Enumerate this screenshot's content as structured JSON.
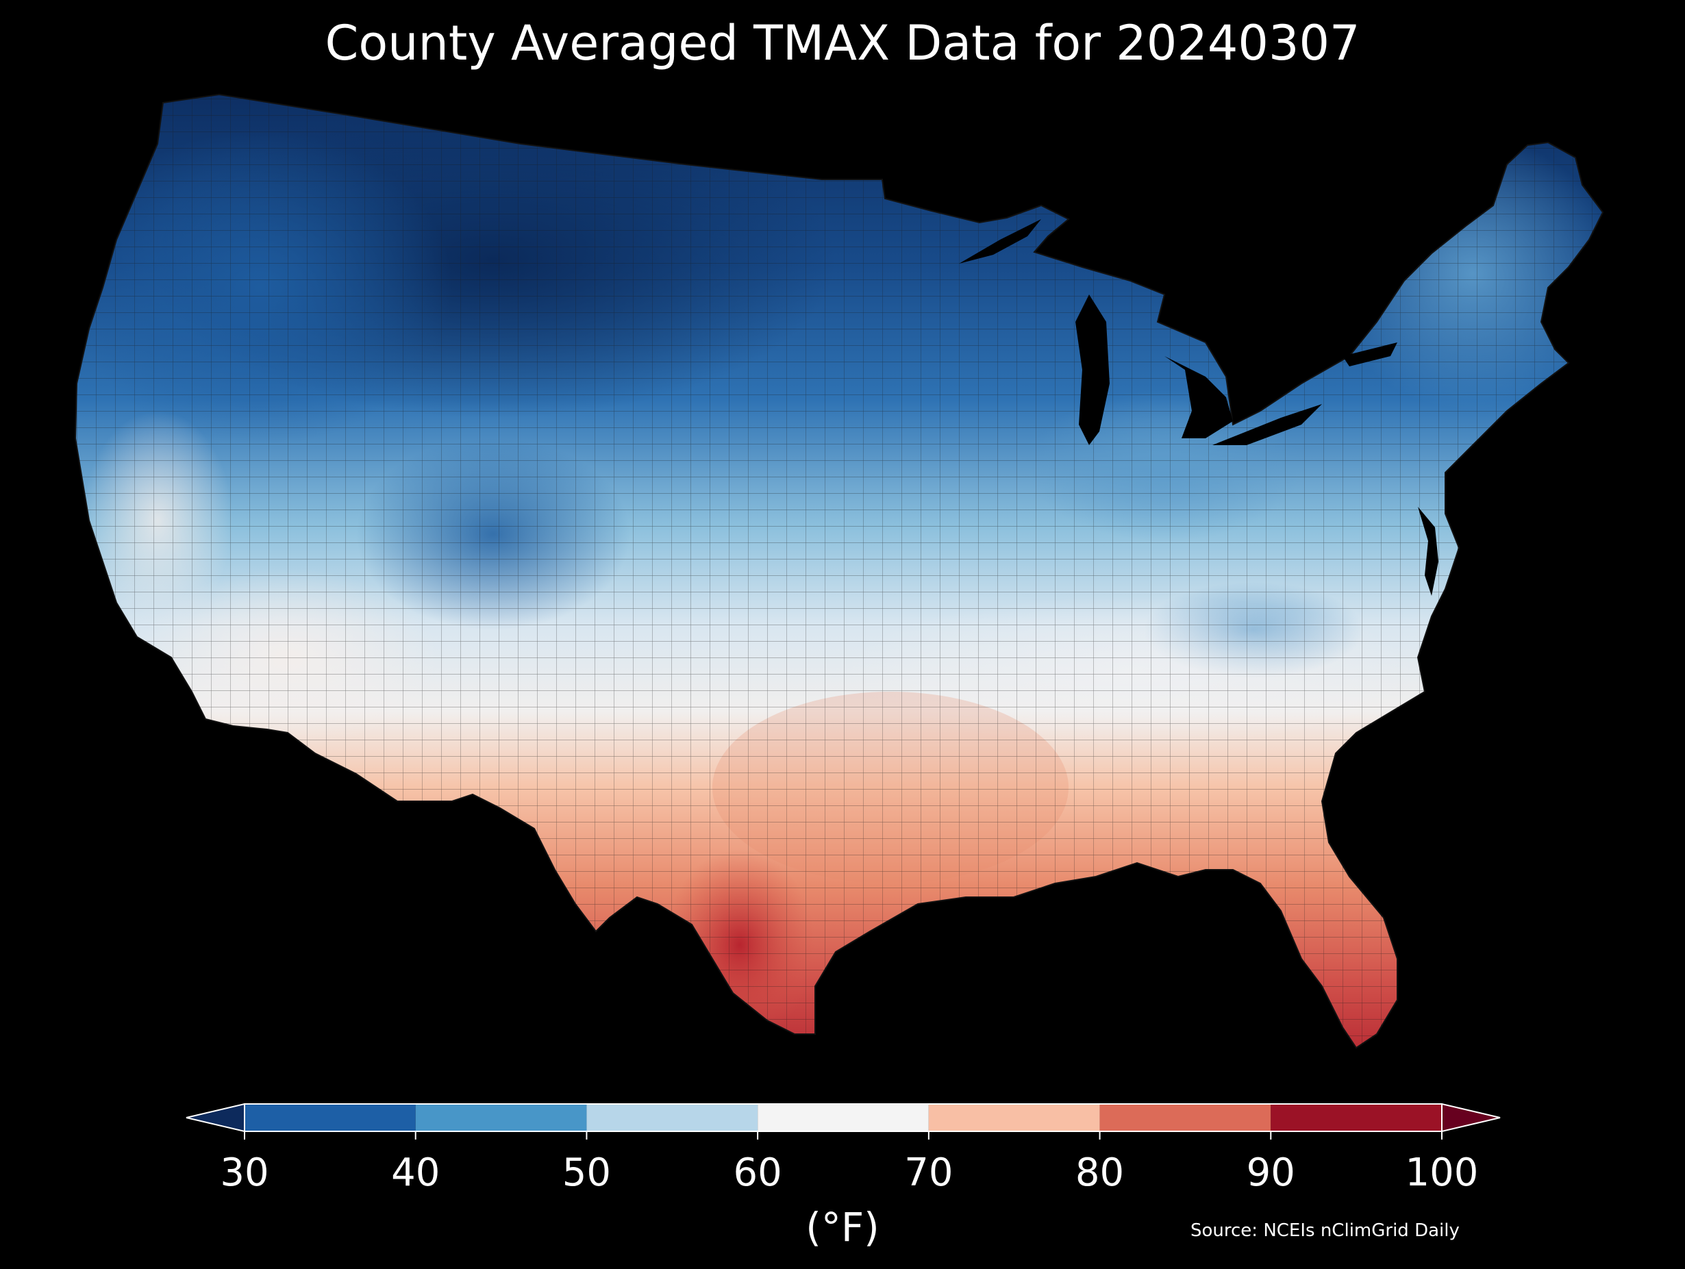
{
  "title": "County Averaged TMAX Data for 20240307",
  "colorbar": {
    "ticks": [
      "30",
      "40",
      "50",
      "60",
      "70",
      "80",
      "90",
      "100"
    ],
    "unit": "(°F)",
    "bins": [
      {
        "from": 30,
        "to": 40,
        "color": "#1d5fa6"
      },
      {
        "from": 40,
        "to": 50,
        "color": "#4896c8"
      },
      {
        "from": 50,
        "to": 60,
        "color": "#b7d6e9"
      },
      {
        "from": 60,
        "to": 70,
        "color": "#f4f4f4"
      },
      {
        "from": 70,
        "to": 80,
        "color": "#f8bfa5"
      },
      {
        "from": 80,
        "to": 90,
        "color": "#dc6b58"
      },
      {
        "from": 90,
        "to": 100,
        "color": "#9b1226"
      }
    ],
    "under_color": "#0d2a5c",
    "over_color": "#67001f"
  },
  "source": "Source: NCEIs nClimGrid Daily",
  "map": {
    "region": "contiguous United States",
    "palette": {
      "very_cold": "#0d2e62",
      "cold": "#1e5c9f",
      "cool": "#3f85bd",
      "mild_cool": "#8cc0dd",
      "light_blue": "#c6dcec",
      "neutral": "#eef0f2",
      "warm_light": "#f6c3a8",
      "warm": "#e98e6e",
      "hot": "#d7584a",
      "very_hot": "#b62832",
      "background": "#000000",
      "borders": "#222222"
    }
  }
}
